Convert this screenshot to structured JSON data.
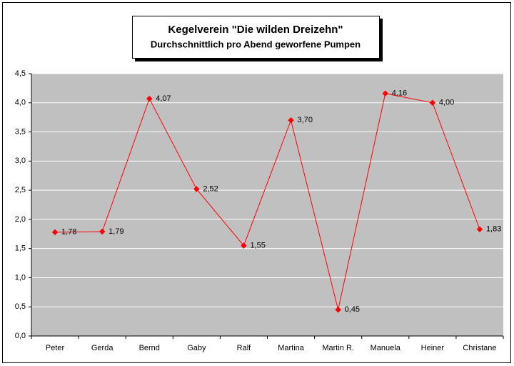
{
  "chart_data": {
    "type": "line",
    "title": "Kegelverein \"Die wilden Dreizehn\"",
    "subtitle": "Durchschnittlich pro Abend geworfene Pumpen",
    "categories": [
      "Peter",
      "Gerda",
      "Bernd",
      "Gaby",
      "Ralf",
      "Martina",
      "Martin R.",
      "Manuela",
      "Heiner",
      "Christane"
    ],
    "values": [
      1.78,
      1.79,
      4.07,
      2.52,
      1.55,
      3.7,
      0.45,
      4.16,
      4.0,
      1.83
    ],
    "value_labels": [
      "1,78",
      "1,79",
      "4,07",
      "2,52",
      "1,55",
      "3,70",
      "0,45",
      "4,16",
      "4,00",
      "1,83"
    ],
    "color": "#ff0000",
    "ylim": [
      0,
      4.5
    ],
    "yticks": [
      {
        "value": 0,
        "label": "0,0"
      },
      {
        "value": 0.5,
        "label": "0,5"
      },
      {
        "value": 1,
        "label": "1,0"
      },
      {
        "value": 1.5,
        "label": "1,5"
      },
      {
        "value": 2,
        "label": "2,0"
      },
      {
        "value": 2.5,
        "label": "2,5"
      },
      {
        "value": 3,
        "label": "3,0"
      },
      {
        "value": 3.5,
        "label": "3,5"
      },
      {
        "value": 4,
        "label": "4,0"
      },
      {
        "value": 4.5,
        "label": "4,5"
      }
    ],
    "grid": true
  }
}
